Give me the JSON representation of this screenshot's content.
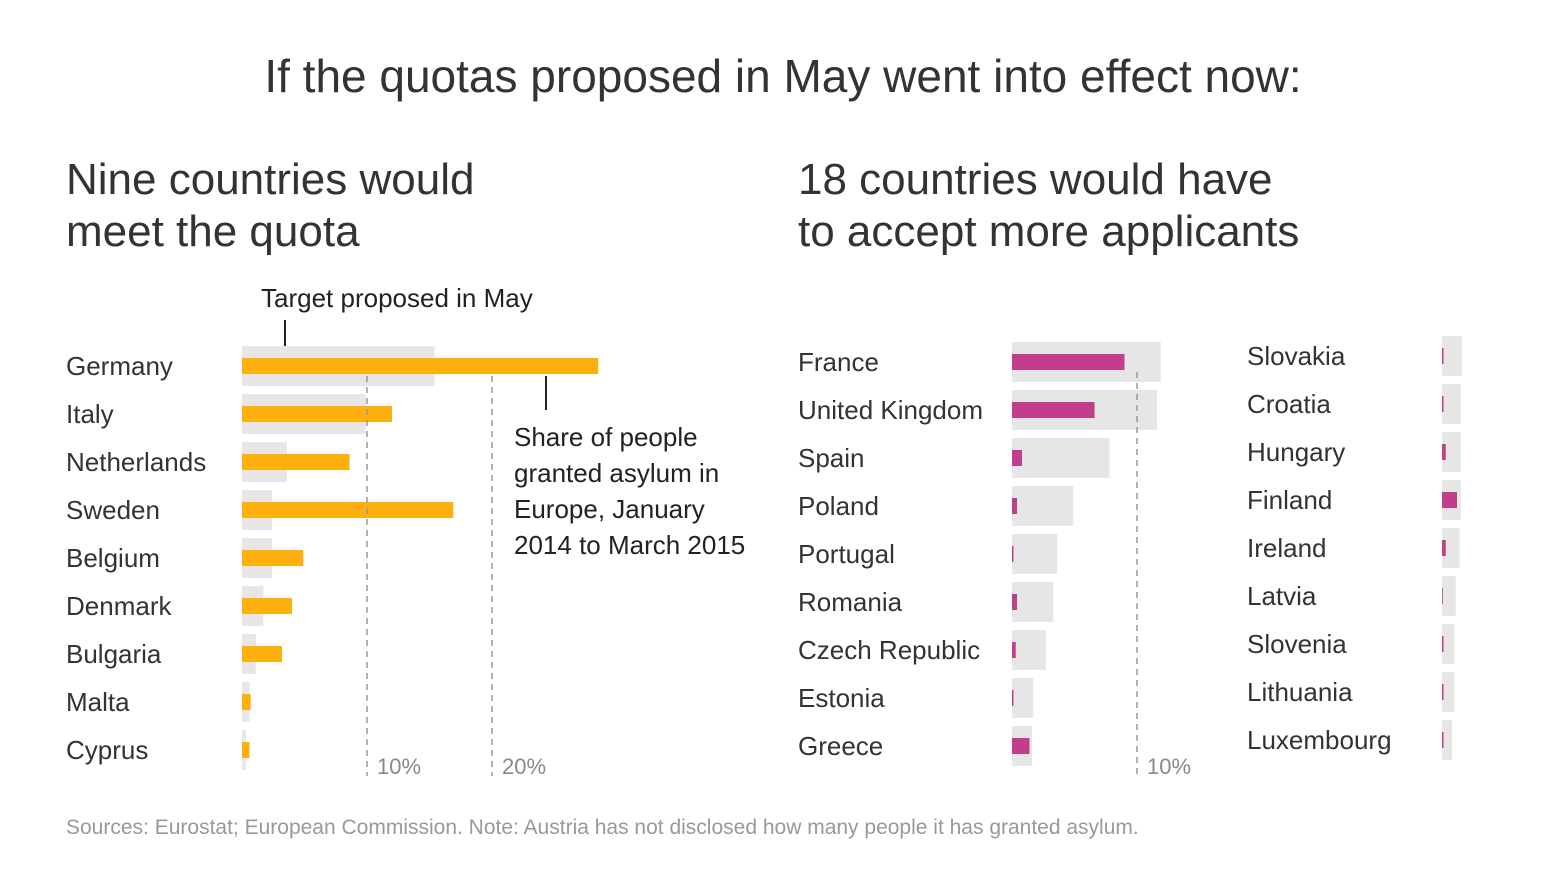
{
  "title": "If the quotas proposed in May went into effect now:",
  "left_subtitle": [
    "Nine countries would",
    "meet the quota"
  ],
  "right_subtitle": [
    "18 countries would have",
    "to accept more applicants"
  ],
  "annotations": {
    "target": "Target proposed in May",
    "share": [
      "Share of people",
      "granted asylum in",
      "Europe, January",
      "2014 to March 2015"
    ]
  },
  "source": "Sources: Eurostat; European Commission. Note: Austria has not disclosed how many people it has granted asylum.",
  "colors": {
    "target_bar": "#e6e6e6",
    "share_meet": "#ffb00f",
    "share_below": "#c13e8c",
    "gridline": "#999999"
  },
  "chart_data": [
    {
      "type": "bar",
      "orientation": "horizontal",
      "categories": [
        "Germany",
        "Italy",
        "Netherlands",
        "Sweden",
        "Belgium",
        "Denmark",
        "Bulgaria",
        "Malta",
        "Cyprus"
      ],
      "series": [
        {
          "name": "Target proposed in May",
          "values": [
            15.4,
            9.9,
            3.6,
            2.4,
            2.4,
            1.7,
            1.1,
            0.6,
            0.3
          ]
        },
        {
          "name": "Share of people granted asylum in Europe, January 2014 to March 2015",
          "values": [
            28.5,
            12.0,
            8.6,
            16.9,
            4.9,
            4.0,
            3.2,
            0.7,
            0.6
          ]
        }
      ],
      "x_ticks": [
        {
          "value": 10,
          "label": "10%"
        },
        {
          "value": 20,
          "label": "20%"
        }
      ],
      "xlim": [
        0,
        30
      ]
    },
    {
      "type": "bar",
      "orientation": "horizontal",
      "categories": [
        "France",
        "United Kingdom",
        "Spain",
        "Poland",
        "Portugal",
        "Romania",
        "Czech Republic",
        "Estonia",
        "Greece"
      ],
      "series": [
        {
          "name": "Target proposed in May",
          "values": [
            11.9,
            11.6,
            7.8,
            4.9,
            3.6,
            3.3,
            2.7,
            1.7,
            1.6
          ]
        },
        {
          "name": "Share of people granted asylum in Europe, January 2014 to March 2015",
          "values": [
            9.0,
            6.6,
            0.8,
            0.4,
            0.1,
            0.4,
            0.3,
            0.05,
            1.4
          ]
        }
      ],
      "x_ticks": [
        {
          "value": 10,
          "label": "10%"
        }
      ],
      "xlim": [
        0,
        15
      ]
    },
    {
      "type": "bar",
      "orientation": "horizontal",
      "categories": [
        "Slovakia",
        "Croatia",
        "Hungary",
        "Finland",
        "Ireland",
        "Latvia",
        "Slovenia",
        "Lithuania",
        "Luxembourg"
      ],
      "series": [
        {
          "name": "Target proposed in May",
          "values": [
            1.6,
            1.5,
            1.5,
            1.5,
            1.4,
            1.1,
            1.0,
            1.0,
            0.8
          ]
        },
        {
          "name": "Share of people granted asylum in Europe, January 2014 to March 2015",
          "values": [
            0.1,
            0.05,
            0.3,
            1.2,
            0.3,
            0.0,
            0.05,
            0.05,
            0.1
          ]
        }
      ],
      "xlim": [
        0,
        15
      ]
    }
  ]
}
